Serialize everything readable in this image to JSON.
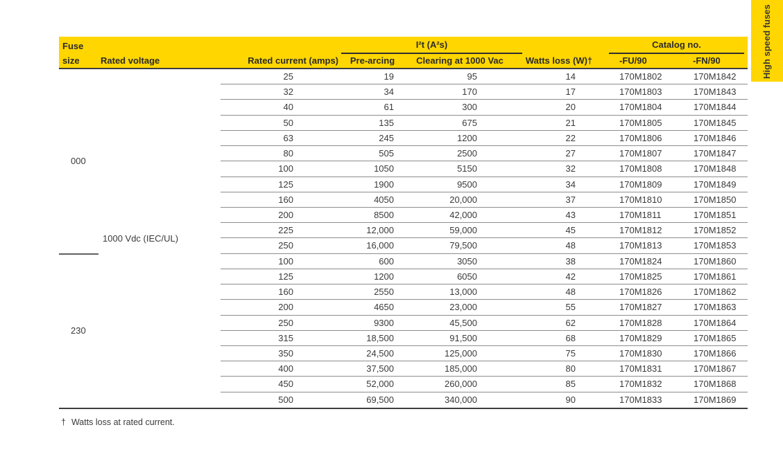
{
  "side_tab": {
    "label": "High speed fuses"
  },
  "table": {
    "header": {
      "fuse_size_line1": "Fuse",
      "fuse_size_line2": "size",
      "rated_voltage": "Rated voltage",
      "rated_current": "Rated current (amps)",
      "i2t_group": "I²t (A²s)",
      "pre_arcing": "Pre-arcing",
      "clearing": "Clearing at 1000 Vac",
      "watts_loss": "Watts loss (W)†",
      "catalog_group": "Catalog no.",
      "catalog_fu": "-FU/90",
      "catalog_fn": "-FN/90"
    },
    "rated_voltage_value": "1000 Vdc (IEC/UL)",
    "columns": [
      "rated-current",
      "pre-arcing",
      "clearing-at-1000-vac",
      "watts-loss",
      "catalog-fu90",
      "catalog-fn90"
    ],
    "sections": [
      {
        "fuse_size": "000",
        "rows": [
          [
            "25",
            "19",
            "95",
            "14",
            "170M1802",
            "170M1842"
          ],
          [
            "32",
            "34",
            "170",
            "17",
            "170M1803",
            "170M1843"
          ],
          [
            "40",
            "61",
            "300",
            "20",
            "170M1804",
            "170M1844"
          ],
          [
            "50",
            "135",
            "675",
            "21",
            "170M1805",
            "170M1845"
          ],
          [
            "63",
            "245",
            "1200",
            "22",
            "170M1806",
            "170M1846"
          ],
          [
            "80",
            "505",
            "2500",
            "27",
            "170M1807",
            "170M1847"
          ],
          [
            "100",
            "1050",
            "5150",
            "32",
            "170M1808",
            "170M1848"
          ],
          [
            "125",
            "1900",
            "9500",
            "34",
            "170M1809",
            "170M1849"
          ],
          [
            "160",
            "4050",
            "20,000",
            "37",
            "170M1810",
            "170M1850"
          ],
          [
            "200",
            "8500",
            "42,000",
            "43",
            "170M1811",
            "170M1851"
          ],
          [
            "225",
            "12,000",
            "59,000",
            "45",
            "170M1812",
            "170M1852"
          ],
          [
            "250",
            "16,000",
            "79,500",
            "48",
            "170M1813",
            "170M1853"
          ]
        ]
      },
      {
        "fuse_size": "230",
        "rows": [
          [
            "100",
            "600",
            "3050",
            "38",
            "170M1824",
            "170M1860"
          ],
          [
            "125",
            "1200",
            "6050",
            "42",
            "170M1825",
            "170M1861"
          ],
          [
            "160",
            "2550",
            "13,000",
            "48",
            "170M1826",
            "170M1862"
          ],
          [
            "200",
            "4650",
            "23,000",
            "55",
            "170M1827",
            "170M1863"
          ],
          [
            "250",
            "9300",
            "45,500",
            "62",
            "170M1828",
            "170M1864"
          ],
          [
            "315",
            "18,500",
            "91,500",
            "68",
            "170M1829",
            "170M1865"
          ],
          [
            "350",
            "24,500",
            "125,000",
            "75",
            "170M1830",
            "170M1866"
          ],
          [
            "400",
            "37,500",
            "185,000",
            "80",
            "170M1831",
            "170M1867"
          ],
          [
            "450",
            "52,000",
            "260,000",
            "85",
            "170M1832",
            "170M1868"
          ],
          [
            "500",
            "69,500",
            "340,000",
            "90",
            "170M1833",
            "170M1869"
          ]
        ]
      }
    ],
    "footnote": {
      "symbol": "†",
      "text": "Watts loss at rated current."
    }
  }
}
